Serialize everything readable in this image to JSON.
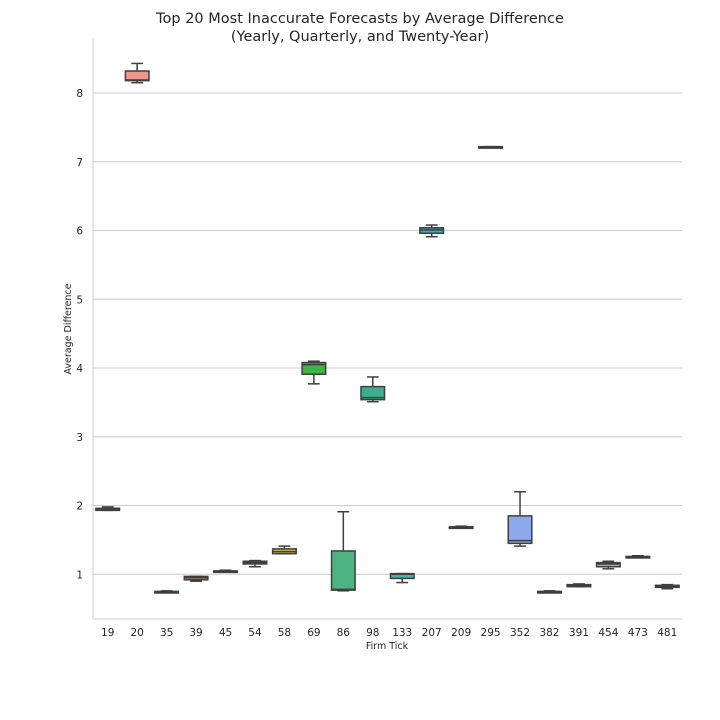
{
  "chart_data": {
    "type": "box",
    "title": [
      "Top 20 Most Inaccurate Forecasts by Average Difference",
      "(Yearly, Quarterly, and Twenty-Year)"
    ],
    "xlabel": "Firm Tick",
    "ylabel": "Average Difference",
    "ylim": [
      0.35,
      8.8
    ],
    "yticks": [
      1,
      2,
      3,
      4,
      5,
      6,
      7,
      8
    ],
    "grid": "horizontal",
    "categories": [
      "19",
      "20",
      "35",
      "39",
      "45",
      "54",
      "58",
      "69",
      "86",
      "98",
      "133",
      "207",
      "209",
      "295",
      "352",
      "382",
      "391",
      "454",
      "473",
      "481"
    ],
    "boxes": [
      {
        "category": "19",
        "color": "#8b7aa8",
        "whislo": 1.93,
        "q1": 1.93,
        "med": 1.95,
        "q3": 1.96,
        "whishi": 1.98
      },
      {
        "category": "20",
        "color": "#f1968a",
        "whislo": 8.15,
        "q1": 8.18,
        "med": 8.19,
        "q3": 8.32,
        "whishi": 8.43
      },
      {
        "category": "35",
        "color": "#7a8fc4",
        "whislo": 0.74,
        "q1": 0.74,
        "med": 0.75,
        "q3": 0.75,
        "whishi": 0.76
      },
      {
        "category": "39",
        "color": "#c49a6c",
        "whislo": 0.9,
        "q1": 0.92,
        "med": 0.95,
        "q3": 0.97,
        "whishi": 0.97
      },
      {
        "category": "45",
        "color": "#7fb1d9",
        "whislo": 1.03,
        "q1": 1.03,
        "med": 1.04,
        "q3": 1.05,
        "whishi": 1.06
      },
      {
        "category": "54",
        "color": "#b8a36a",
        "whislo": 1.11,
        "q1": 1.15,
        "med": 1.17,
        "q3": 1.19,
        "whishi": 1.2
      },
      {
        "category": "58",
        "color": "#b9c046",
        "whislo": 1.3,
        "q1": 1.3,
        "med": 1.33,
        "q3": 1.37,
        "whishi": 1.41
      },
      {
        "category": "69",
        "color": "#3cb545",
        "whislo": 3.77,
        "q1": 3.91,
        "med": 4.05,
        "q3": 4.08,
        "whishi": 4.1
      },
      {
        "category": "86",
        "color": "#4cb482",
        "whislo": 0.76,
        "q1": 0.77,
        "med": 0.78,
        "q3": 1.34,
        "whishi": 1.91
      },
      {
        "category": "98",
        "color": "#3fae8d",
        "whislo": 3.51,
        "q1": 3.54,
        "med": 3.57,
        "q3": 3.73,
        "whishi": 3.87
      },
      {
        "category": "133",
        "color": "#42b5a7",
        "whislo": 0.88,
        "q1": 0.94,
        "med": 1.0,
        "q3": 1.01,
        "whishi": 1.01
      },
      {
        "category": "207",
        "color": "#42a8b8",
        "whislo": 5.91,
        "q1": 5.96,
        "med": 6.01,
        "q3": 6.04,
        "whishi": 6.08
      },
      {
        "category": "209",
        "color": "#4fa9c9",
        "whislo": 1.67,
        "q1": 1.68,
        "med": 1.69,
        "q3": 1.69,
        "whishi": 1.7
      },
      {
        "category": "295",
        "color": "#6f9fd6",
        "whislo": 7.21,
        "q1": 7.21,
        "med": 7.21,
        "q3": 7.22,
        "whishi": 7.22
      },
      {
        "category": "352",
        "color": "#8ba9ec",
        "whislo": 1.41,
        "q1": 1.45,
        "med": 1.49,
        "q3": 1.85,
        "whishi": 2.2
      },
      {
        "category": "382",
        "color": "#a79be6",
        "whislo": 0.74,
        "q1": 0.74,
        "med": 0.75,
        "q3": 0.75,
        "whishi": 0.76
      },
      {
        "category": "391",
        "color": "#c192e2",
        "whislo": 0.82,
        "q1": 0.82,
        "med": 0.84,
        "q3": 0.85,
        "whishi": 0.86
      },
      {
        "category": "454",
        "color": "#dc8cd6",
        "whislo": 1.08,
        "q1": 1.11,
        "med": 1.15,
        "q3": 1.17,
        "whishi": 1.19
      },
      {
        "category": "473",
        "color": "#e28bbf",
        "whislo": 1.24,
        "q1": 1.24,
        "med": 1.25,
        "q3": 1.26,
        "whishi": 1.27
      },
      {
        "category": "481",
        "color": "#ea90a8",
        "whislo": 0.79,
        "q1": 0.81,
        "med": 0.82,
        "q3": 0.84,
        "whishi": 0.85
      }
    ]
  }
}
